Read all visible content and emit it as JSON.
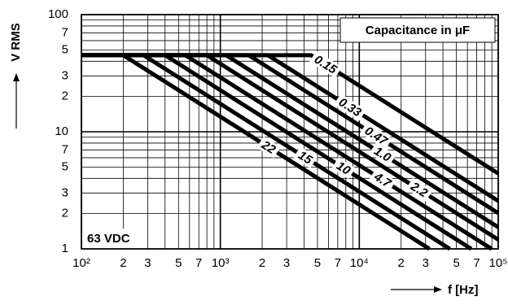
{
  "chart_data": {
    "type": "line",
    "ylabel": "V RMS",
    "xlabel": "f [Hz]",
    "legend_title": "Capacitance in μF",
    "annotation": "63 VDC",
    "xlog": true,
    "ylog": true,
    "grid": true,
    "xlim": [
      100,
      100000
    ],
    "ylim": [
      1,
      100
    ],
    "xticks": [
      {
        "value": 100,
        "label": "10²"
      },
      {
        "value": 200,
        "label": "2"
      },
      {
        "value": 300,
        "label": "3"
      },
      {
        "value": 500,
        "label": "5"
      },
      {
        "value": 700,
        "label": "7"
      },
      {
        "value": 1000,
        "label": "10³"
      },
      {
        "value": 2000,
        "label": "2"
      },
      {
        "value": 3000,
        "label": "3"
      },
      {
        "value": 5000,
        "label": "5"
      },
      {
        "value": 7000,
        "label": "7"
      },
      {
        "value": 10000,
        "label": "10⁴"
      },
      {
        "value": 20000,
        "label": "2"
      },
      {
        "value": 30000,
        "label": "3"
      },
      {
        "value": 50000,
        "label": "5"
      },
      {
        "value": 70000,
        "label": "7"
      },
      {
        "value": 100000,
        "label": "10⁵"
      }
    ],
    "xgrid": [
      400,
      600,
      800,
      900,
      4000,
      6000,
      8000,
      9000,
      40000,
      60000,
      80000,
      90000
    ],
    "yticks": [
      1,
      2,
      3,
      5,
      7,
      10,
      {
        "value": 20,
        "label": "2"
      },
      {
        "value": 30,
        "label": "3"
      },
      {
        "value": 50,
        "label": "5"
      },
      {
        "value": 70,
        "label": "7"
      },
      100
    ],
    "ygrid": [
      4,
      6,
      8,
      9,
      40,
      60,
      80,
      90
    ],
    "series": [
      {
        "name": "22",
        "color": "#000000",
        "x": [
          100,
          200,
          32000
        ],
        "values": [
          45,
          45,
          1
        ]
      },
      {
        "name": "15",
        "color": "#000000",
        "x": [
          100,
          280,
          44800
        ],
        "values": [
          45,
          45,
          1
        ]
      },
      {
        "name": "10",
        "color": "#000000",
        "x": [
          100,
          400,
          64000
        ],
        "values": [
          45,
          45,
          1
        ]
      },
      {
        "name": "4.7",
        "color": "#000000",
        "x": [
          100,
          560,
          89600
        ],
        "values": [
          45,
          45,
          1
        ]
      },
      {
        "name": "2.2",
        "color": "#000000",
        "x": [
          100,
          800,
          100000
        ],
        "values": [
          45,
          45,
          1.2
        ]
      },
      {
        "name": "1.0",
        "color": "#000000",
        "x": [
          100,
          1100,
          100000
        ],
        "values": [
          45,
          45,
          1.53
        ]
      },
      {
        "name": "0.47",
        "color": "#000000",
        "x": [
          100,
          1600,
          100000
        ],
        "values": [
          45,
          45,
          2.02
        ]
      },
      {
        "name": "0.33",
        "color": "#000000",
        "x": [
          100,
          2200,
          100000
        ],
        "values": [
          45,
          45,
          2.57
        ]
      },
      {
        "name": "0.15",
        "color": "#000000",
        "x": [
          100,
          4500,
          100000
        ],
        "values": [
          45,
          45,
          4.4
        ]
      }
    ]
  }
}
